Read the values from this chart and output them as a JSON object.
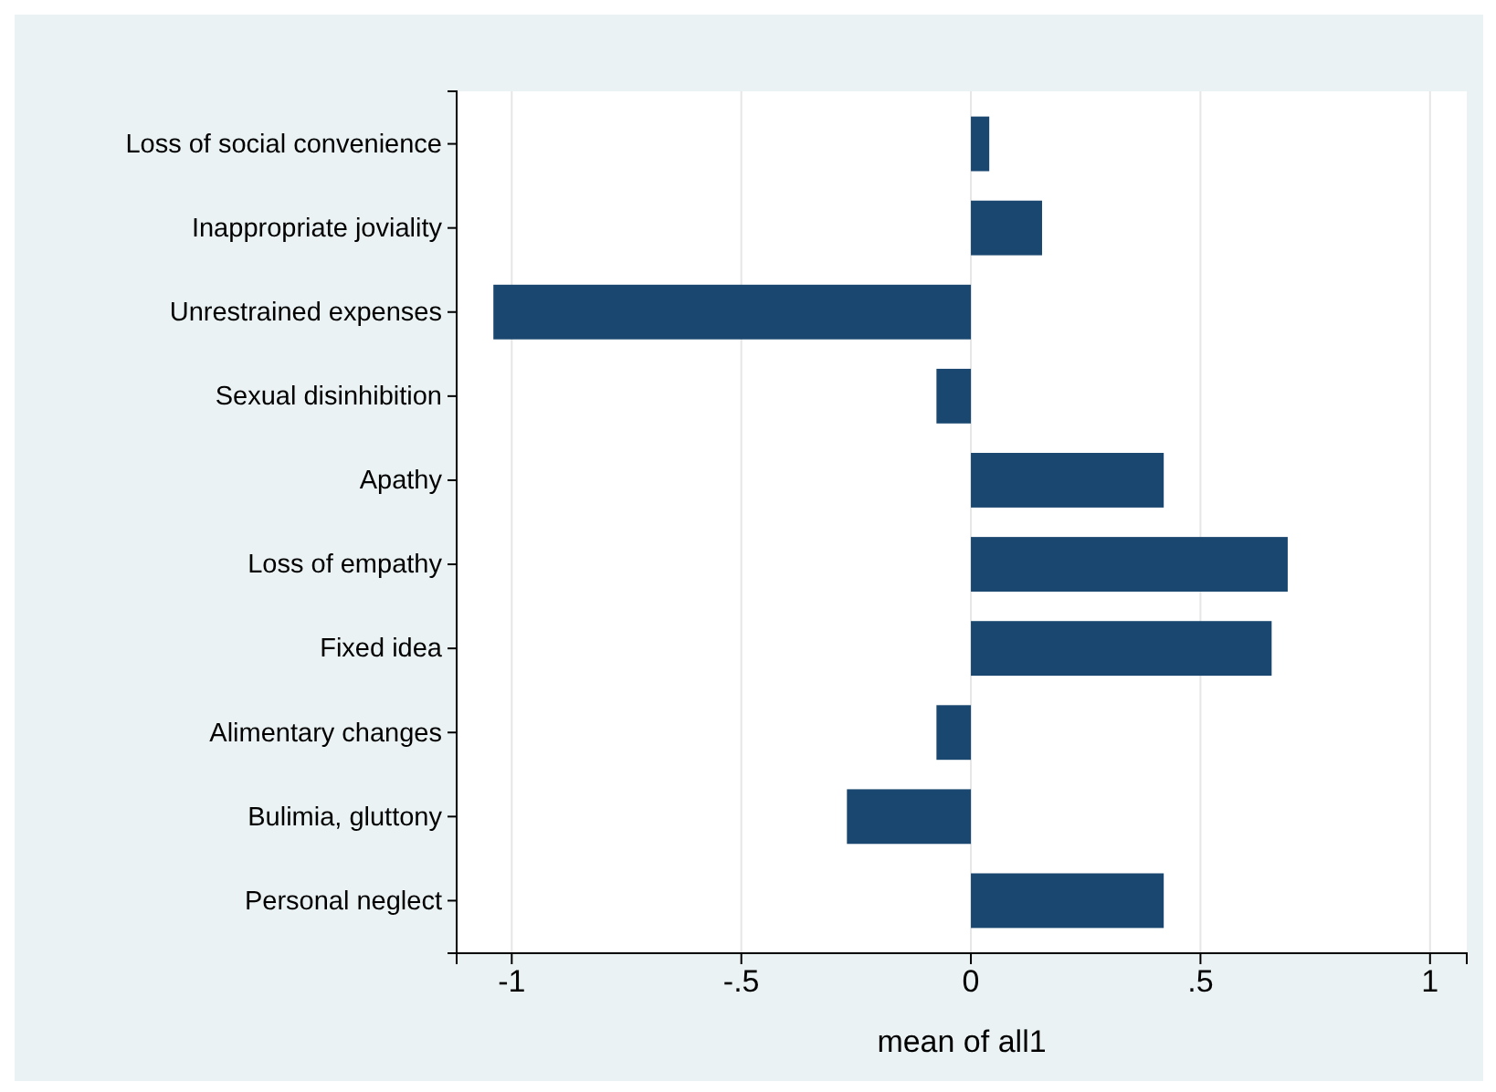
{
  "chart_data": {
    "type": "bar",
    "orientation": "horizontal",
    "xlabel": "mean of all1",
    "categories": [
      "Loss of social convenience",
      "Inappropriate joviality",
      "Unrestrained expenses",
      "Sexual disinhibition",
      "Apathy",
      "Loss of empathy",
      "Fixed idea",
      "Alimentary changes",
      "Bulimia, gluttony",
      "Personal neglect"
    ],
    "values": [
      0.04,
      0.155,
      -1.04,
      -0.075,
      0.42,
      0.69,
      0.655,
      -0.075,
      -0.27,
      0.42
    ],
    "color": "#1a476f",
    "xlim": [
      -1.12,
      1.08
    ],
    "xticks": [
      {
        "value": -1,
        "label": "-1"
      },
      {
        "value": -0.5,
        "label": "-.5"
      },
      0,
      {
        "value": 0.5,
        "label": ".5"
      },
      1
    ],
    "grid": "x"
  }
}
